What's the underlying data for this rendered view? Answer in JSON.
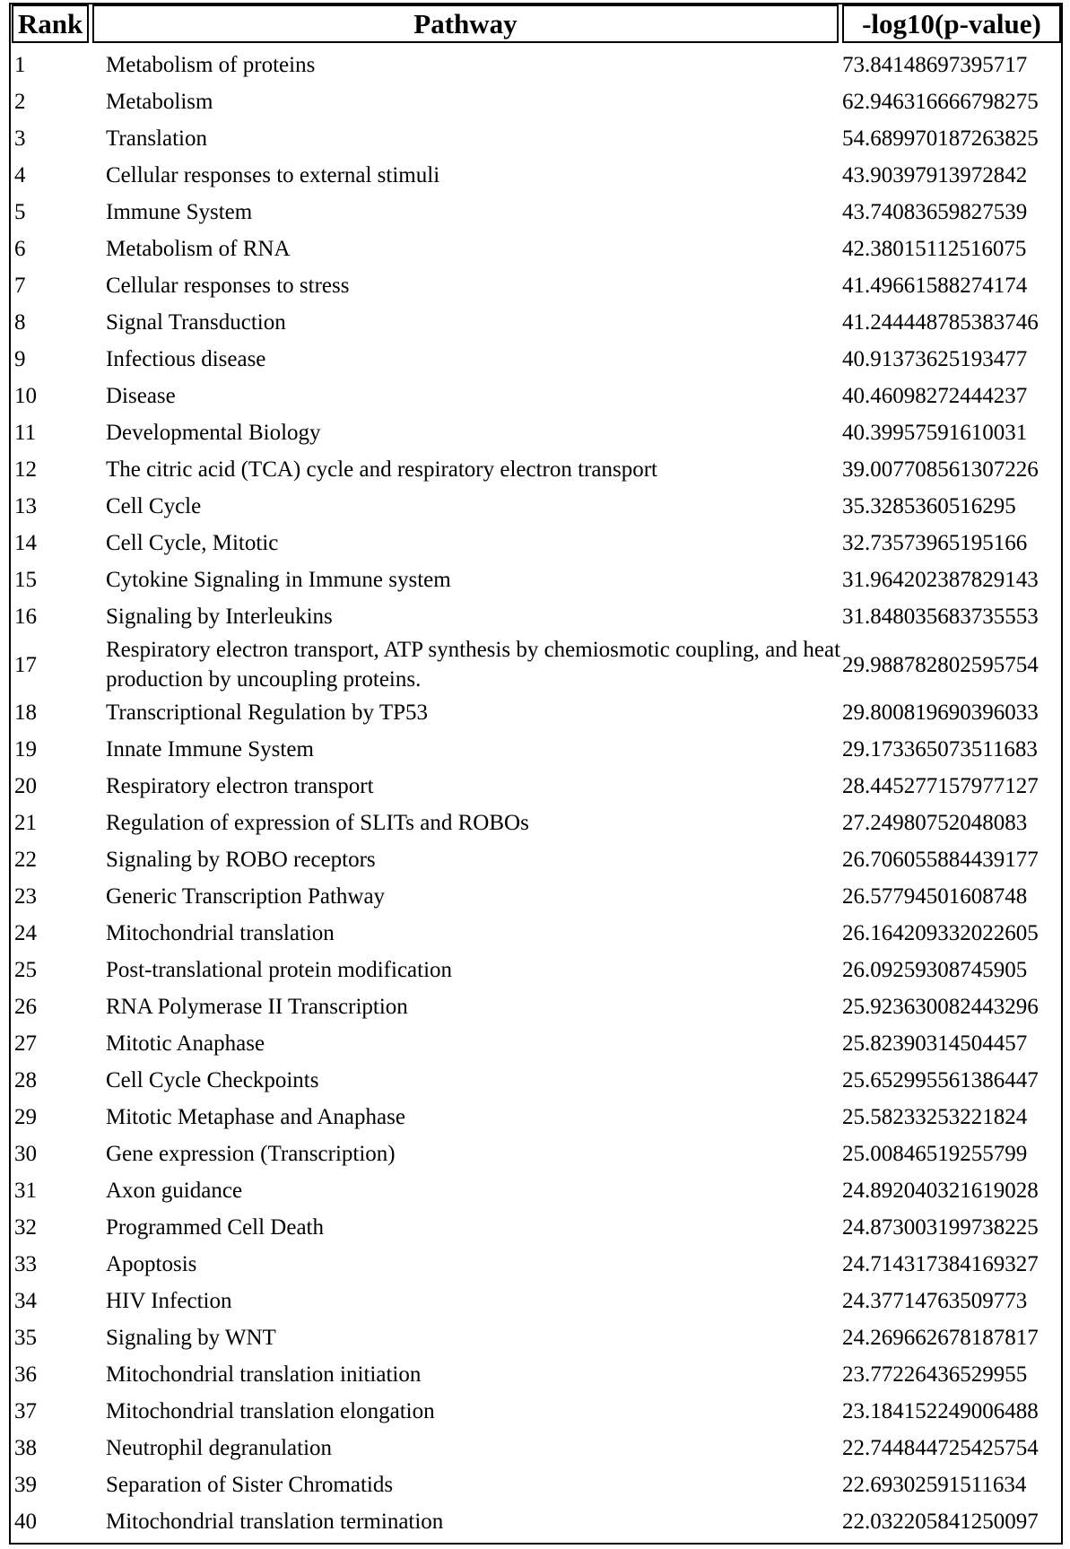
{
  "header": {
    "rank_label": "Rank",
    "pathway_label": "Pathway",
    "value_label": "-log10(p-value)"
  },
  "rows": [
    {
      "rank": "1",
      "pathway": "Metabolism of proteins",
      "value": "73.84148697395717"
    },
    {
      "rank": "2",
      "pathway": "Metabolism",
      "value": "62.946316666798275"
    },
    {
      "rank": "3",
      "pathway": "Translation",
      "value": "54.689970187263825"
    },
    {
      "rank": "4",
      "pathway": "Cellular responses to external stimuli",
      "value": "43.90397913972842"
    },
    {
      "rank": "5",
      "pathway": "Immune System",
      "value": "43.74083659827539"
    },
    {
      "rank": "6",
      "pathway": "Metabolism of RNA",
      "value": "42.38015112516075"
    },
    {
      "rank": "7",
      "pathway": "Cellular responses to stress",
      "value": "41.49661588274174"
    },
    {
      "rank": "8",
      "pathway": "Signal Transduction",
      "value": "41.244448785383746"
    },
    {
      "rank": "9",
      "pathway": "Infectious disease",
      "value": "40.91373625193477"
    },
    {
      "rank": "10",
      "pathway": "Disease",
      "value": "40.46098272444237"
    },
    {
      "rank": "11",
      "pathway": "Developmental Biology",
      "value": "40.39957591610031"
    },
    {
      "rank": "12",
      "pathway": "The citric acid (TCA) cycle and respiratory electron transport",
      "value": "39.007708561307226"
    },
    {
      "rank": "13",
      "pathway": "Cell Cycle",
      "value": "35.3285360516295"
    },
    {
      "rank": "14",
      "pathway": "Cell Cycle, Mitotic",
      "value": "32.73573965195166"
    },
    {
      "rank": "15",
      "pathway": "Cytokine Signaling in Immune system",
      "value": "31.964202387829143"
    },
    {
      "rank": "16",
      "pathway": "Signaling by Interleukins",
      "value": "31.848035683735553"
    },
    {
      "rank": "17",
      "pathway": "Respiratory electron transport, ATP synthesis by chemiosmotic coupling, and heat production by uncoupling proteins.",
      "value": "29.988782802595754"
    },
    {
      "rank": "18",
      "pathway": "Transcriptional Regulation by TP53",
      "value": "29.800819690396033"
    },
    {
      "rank": "19",
      "pathway": "Innate Immune System",
      "value": "29.173365073511683"
    },
    {
      "rank": "20",
      "pathway": "Respiratory electron transport",
      "value": "28.445277157977127"
    },
    {
      "rank": "21",
      "pathway": "Regulation of expression of SLITs and ROBOs",
      "value": "27.24980752048083"
    },
    {
      "rank": "22",
      "pathway": "Signaling by ROBO receptors",
      "value": "26.706055884439177"
    },
    {
      "rank": "23",
      "pathway": "Generic Transcription Pathway",
      "value": "26.57794501608748"
    },
    {
      "rank": "24",
      "pathway": "Mitochondrial translation",
      "value": "26.164209332022605"
    },
    {
      "rank": "25",
      "pathway": "Post-translational protein modification",
      "value": "26.09259308745905"
    },
    {
      "rank": "26",
      "pathway": "RNA Polymerase II Transcription",
      "value": "25.923630082443296"
    },
    {
      "rank": "27",
      "pathway": "Mitotic Anaphase",
      "value": "25.82390314504457"
    },
    {
      "rank": "28",
      "pathway": "Cell Cycle Checkpoints",
      "value": "25.652995561386447"
    },
    {
      "rank": "29",
      "pathway": "Mitotic Metaphase and Anaphase",
      "value": "25.58233253221824"
    },
    {
      "rank": "30",
      "pathway": "Gene expression (Transcription)",
      "value": "25.00846519255799"
    },
    {
      "rank": "31",
      "pathway": "Axon guidance",
      "value": "24.892040321619028"
    },
    {
      "rank": "32",
      "pathway": "Programmed Cell Death",
      "value": "24.873003199738225"
    },
    {
      "rank": "33",
      "pathway": "Apoptosis",
      "value": "24.714317384169327"
    },
    {
      "rank": "34",
      "pathway": "HIV Infection",
      "value": "24.37714763509773"
    },
    {
      "rank": "35",
      "pathway": "Signaling by WNT",
      "value": "24.269662678187817"
    },
    {
      "rank": "36",
      "pathway": "Mitochondrial translation initiation",
      "value": "23.77226436529955"
    },
    {
      "rank": "37",
      "pathway": "Mitochondrial translation elongation",
      "value": "23.184152249006488"
    },
    {
      "rank": "38",
      "pathway": "Neutrophil degranulation",
      "value": "22.744844725425754"
    },
    {
      "rank": "39",
      "pathway": "Separation of Sister Chromatids",
      "value": "22.69302591511634"
    },
    {
      "rank": "40",
      "pathway": "Mitochondrial translation termination",
      "value": "22.032205841250097"
    }
  ]
}
